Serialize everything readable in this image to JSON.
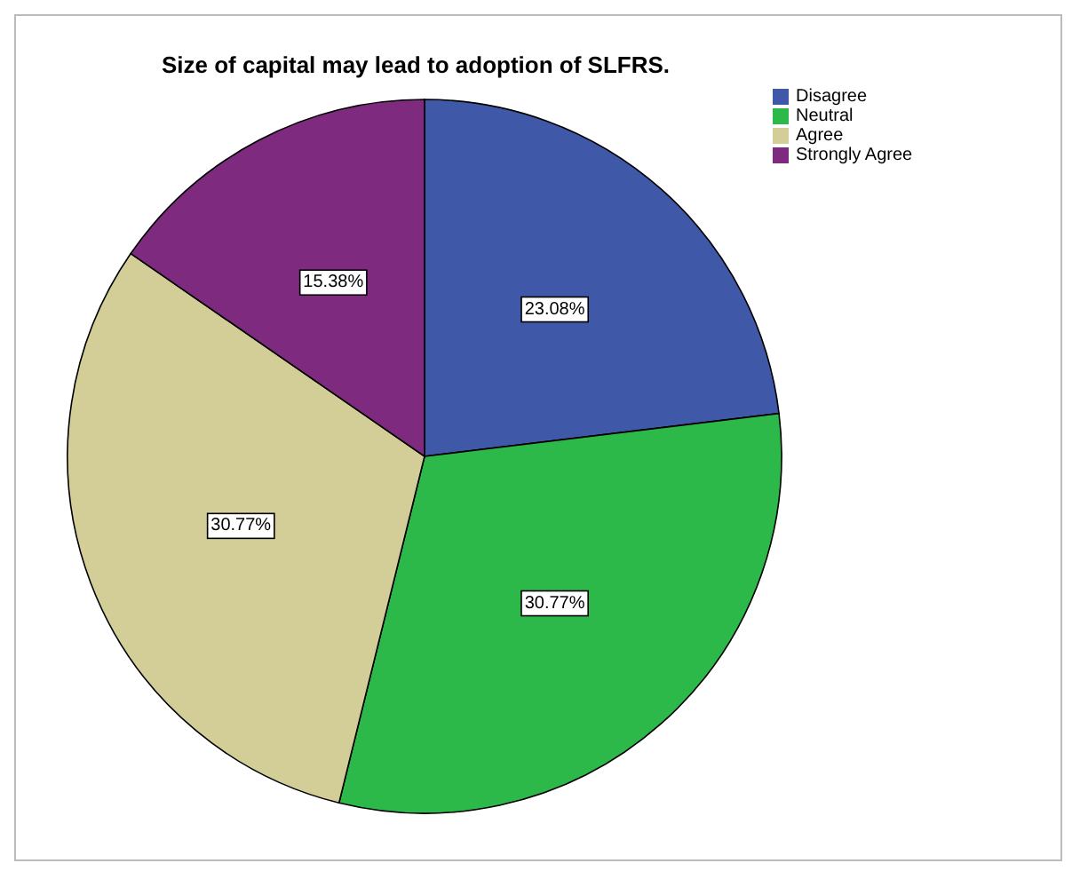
{
  "chart_data": {
    "type": "pie",
    "title": "Size of capital may lead to adoption of SLFRS.",
    "categories": [
      "Disagree",
      "Neutral",
      "Agree",
      "Strongly Agree"
    ],
    "values": [
      23.08,
      30.77,
      30.77,
      15.38
    ],
    "colors": [
      "#3f58a8",
      "#2db84a",
      "#d3ce98",
      "#7e2a7e"
    ],
    "value_labels": [
      "23.08%",
      "30.77%",
      "30.77%",
      "15.38%"
    ],
    "legend": "top right"
  }
}
